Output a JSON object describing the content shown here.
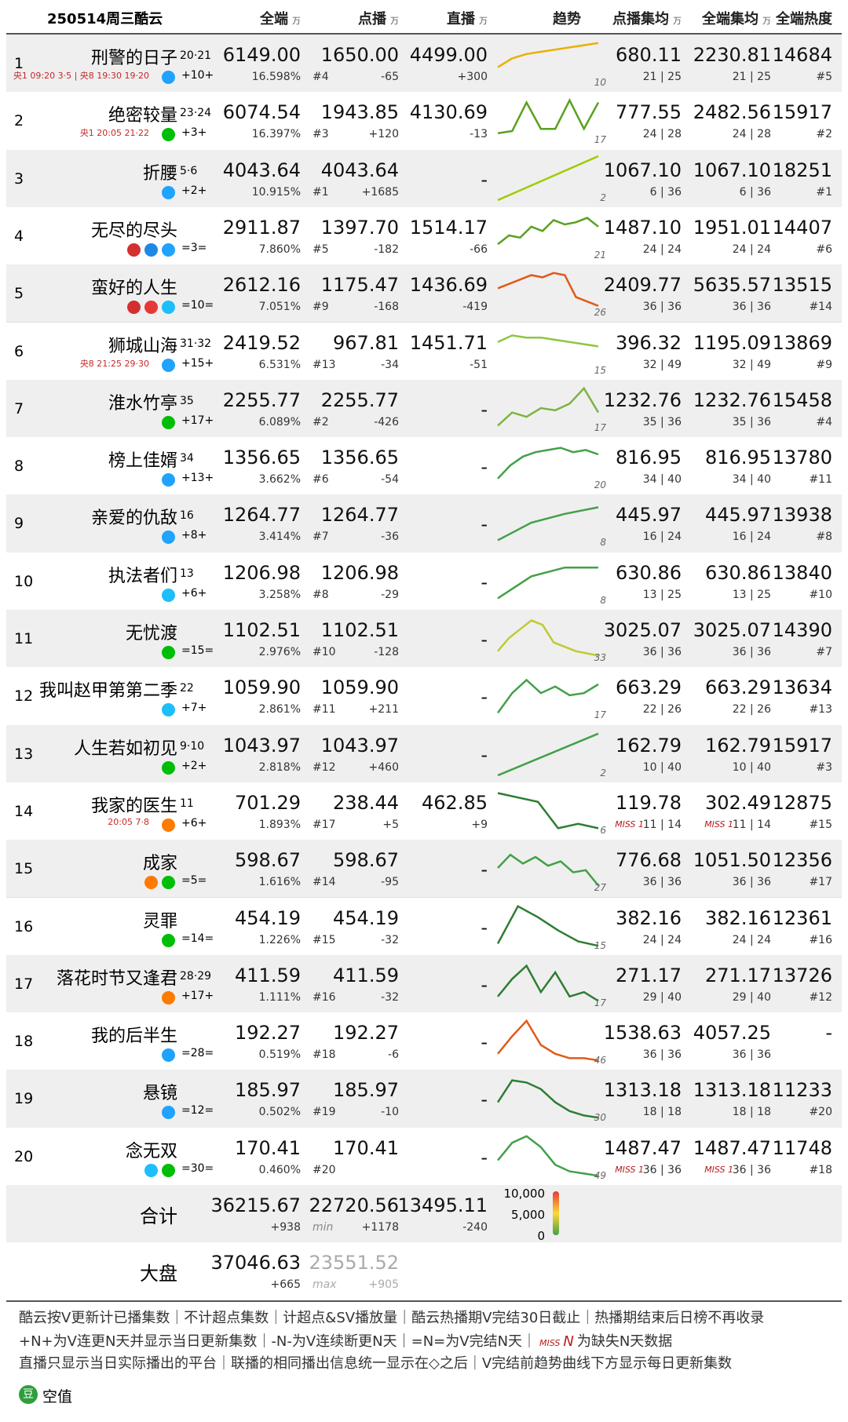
{
  "header": {
    "title": "250514周三酷云",
    "cols": [
      {
        "name": "全端",
        "unit": "万"
      },
      {
        "name": "点播",
        "unit": "万"
      },
      {
        "name": "直播",
        "unit": "万"
      },
      {
        "name": "趋势"
      },
      {
        "name": "点播集均",
        "unit": "万"
      },
      {
        "name": "全端集均",
        "unit": "万"
      },
      {
        "name": "全端热度"
      }
    ]
  },
  "rows": [
    {
      "rank": "1",
      "name": "刑警的日子",
      "eps": "20·21",
      "sched": "央1 09:20 3·5 | 央8 19:30 19·20",
      "chg": "+10+",
      "icons": [
        "#1fa3ff"
      ],
      "total": "6149.00",
      "share": "16.598%",
      "vod": "1650.00",
      "vod_rank": "#4",
      "vod_chg": "-65",
      "live": "4499.00",
      "live_chg": "+300",
      "trend": [
        40,
        60,
        70,
        75,
        80,
        85,
        90,
        95
      ],
      "trend_color": "#e8b000",
      "trend_end": "10",
      "vod_avg": "680.11",
      "vod_eps": "21 | 25",
      "all_avg": "2230.81",
      "all_eps": "21 | 25",
      "heat": "14684",
      "heat_rank": "#5"
    },
    {
      "rank": "2",
      "name": "绝密较量",
      "eps": "23·24",
      "sched": "央1 20:05 21·22",
      "chg": "+3+",
      "icons": [
        "#00be06"
      ],
      "total": "6074.54",
      "share": "16.397%",
      "vod": "1943.85",
      "vod_rank": "#3",
      "vod_chg": "+120",
      "live": "4130.69",
      "live_chg": "-13",
      "trend": [
        20,
        25,
        90,
        30,
        30,
        95,
        30,
        90
      ],
      "trend_color": "#5aa01e",
      "trend_end": "17",
      "vod_avg": "777.55",
      "vod_eps": "24 | 28",
      "all_avg": "2482.56",
      "all_eps": "24 | 28",
      "heat": "15917",
      "heat_rank": "#2"
    },
    {
      "rank": "3",
      "name": "折腰",
      "eps": "5·6",
      "chg": "+2+",
      "icons": [
        "#1fa3ff"
      ],
      "total": "4043.64",
      "share": "10.915%",
      "vod": "4043.64",
      "vod_rank": "#1",
      "vod_chg": "+1685",
      "live": "-",
      "trend": [
        0,
        100
      ],
      "trend_color": "#9ccc00",
      "trend_end": "2",
      "vod_avg": "1067.10",
      "vod_eps": "6 | 36",
      "all_avg": "1067.10",
      "all_eps": "6 | 36",
      "heat": "18251",
      "heat_rank": "#1"
    },
    {
      "rank": "4",
      "name": "无尽的尽头",
      "chg": "=3=",
      "icons": [
        "#d32f2f",
        "#1e88e5",
        "#1fa3ff"
      ],
      "total": "2911.87",
      "share": "7.860%",
      "vod": "1397.70",
      "vod_rank": "#5",
      "vod_chg": "-182",
      "live": "1514.17",
      "live_chg": "-66",
      "trend": [
        30,
        50,
        45,
        70,
        60,
        85,
        75,
        80,
        90,
        70
      ],
      "trend_color": "#5aa01e",
      "trend_end": "21",
      "vod_avg": "1487.10",
      "vod_eps": "24 | 24",
      "all_avg": "1951.01",
      "all_eps": "24 | 24",
      "heat": "14407",
      "heat_rank": "#6"
    },
    {
      "rank": "5",
      "name": "蛮好的人生",
      "chg": "=10=",
      "icons": [
        "#d32f2f",
        "#e53935",
        "#1ebefa"
      ],
      "total": "2612.16",
      "share": "7.051%",
      "vod": "1175.47",
      "vod_rank": "#9",
      "vod_chg": "-168",
      "live": "1436.69",
      "live_chg": "-419",
      "trend": [
        60,
        70,
        80,
        90,
        85,
        95,
        90,
        40,
        30,
        20
      ],
      "trend_color": "#e05a1a",
      "trend_end": "26",
      "vod_avg": "2409.77",
      "vod_eps": "36 | 36",
      "all_avg": "5635.57",
      "all_eps": "36 | 36",
      "heat": "13515",
      "heat_rank": "#14"
    },
    {
      "rank": "6",
      "name": "狮城山海",
      "eps": "31·32",
      "sched": "央8 21:25 29·30",
      "chg": "+15+",
      "icons": [
        "#1fa3ff"
      ],
      "total": "2419.52",
      "share": "6.531%",
      "vod": "967.81",
      "vod_rank": "#13",
      "vod_chg": "-34",
      "live": "1451.71",
      "live_chg": "-51",
      "trend": [
        70,
        85,
        80,
        80,
        75,
        70,
        65,
        60
      ],
      "trend_color": "#8cc63f",
      "trend_end": "15",
      "vod_avg": "396.32",
      "vod_eps": "32 | 49",
      "all_avg": "1195.09",
      "all_eps": "32 | 49",
      "heat": "13869",
      "heat_rank": "#9"
    },
    {
      "rank": "7",
      "name": "淮水竹亭",
      "eps": "35",
      "chg": "+17+",
      "icons": [
        "#00be06"
      ],
      "total": "2255.77",
      "share": "6.089%",
      "vod": "2255.77",
      "vod_rank": "#2",
      "vod_chg": "-426",
      "live": "-",
      "trend": [
        10,
        40,
        30,
        50,
        45,
        60,
        95,
        40
      ],
      "trend_color": "#7cb342",
      "trend_end": "17",
      "vod_avg": "1232.76",
      "vod_eps": "35 | 36",
      "all_avg": "1232.76",
      "all_eps": "35 | 36",
      "heat": "15458",
      "heat_rank": "#4"
    },
    {
      "rank": "8",
      "name": "榜上佳婿",
      "eps": "34",
      "chg": "+13+",
      "icons": [
        "#1fa3ff"
      ],
      "total": "1356.65",
      "share": "3.662%",
      "vod": "1356.65",
      "vod_rank": "#6",
      "vod_chg": "-54",
      "live": "-",
      "trend": [
        20,
        50,
        70,
        80,
        85,
        90,
        80,
        85,
        75
      ],
      "trend_color": "#43a047",
      "trend_end": "20",
      "vod_avg": "816.95",
      "vod_eps": "34 | 40",
      "all_avg": "816.95",
      "all_eps": "34 | 40",
      "heat": "13780",
      "heat_rank": "#11"
    },
    {
      "rank": "9",
      "name": "亲爱的仇敌",
      "eps": "16",
      "chg": "+8+",
      "icons": [
        "#1fa3ff"
      ],
      "total": "1264.77",
      "share": "3.414%",
      "vod": "1264.77",
      "vod_rank": "#7",
      "vod_chg": "-36",
      "live": "-",
      "trend": [
        10,
        50,
        70,
        85
      ],
      "trend_color": "#43a047",
      "trend_end": "8",
      "vod_avg": "445.97",
      "vod_eps": "16 | 24",
      "all_avg": "445.97",
      "all_eps": "16 | 24",
      "heat": "13938",
      "heat_rank": "#8"
    },
    {
      "rank": "10",
      "name": "执法者们",
      "eps": "13",
      "chg": "+6+",
      "icons": [
        "#1ebefa"
      ],
      "total": "1206.98",
      "share": "3.258%",
      "vod": "1206.98",
      "vod_rank": "#8",
      "vod_chg": "-29",
      "live": "-",
      "trend": [
        10,
        60,
        80,
        80
      ],
      "trend_color": "#43a047",
      "trend_end": "8",
      "vod_avg": "630.86",
      "vod_eps": "13 | 25",
      "all_avg": "630.86",
      "all_eps": "13 | 25",
      "heat": "13840",
      "heat_rank": "#10"
    },
    {
      "rank": "11",
      "name": "无忧渡",
      "chg": "=15=",
      "icons": [
        "#00be06"
      ],
      "total": "1102.51",
      "share": "2.976%",
      "vod": "1102.51",
      "vod_rank": "#10",
      "vod_chg": "-128",
      "live": "-",
      "trend": [
        20,
        50,
        70,
        90,
        80,
        40,
        30,
        20,
        15,
        10
      ],
      "trend_color": "#c0ca33",
      "trend_end": "33",
      "vod_avg": "3025.07",
      "vod_eps": "36 | 36",
      "all_avg": "3025.07",
      "all_eps": "36 | 36",
      "heat": "14390",
      "heat_rank": "#7"
    },
    {
      "rank": "12",
      "name": "我叫赵甲第第二季",
      "eps": "22",
      "chg": "+7+",
      "icons": [
        "#1ebefa"
      ],
      "total": "1059.90",
      "share": "2.861%",
      "vod": "1059.90",
      "vod_rank": "#11",
      "vod_chg": "+211",
      "live": "-",
      "trend": [
        10,
        55,
        85,
        55,
        70,
        50,
        55,
        75
      ],
      "trend_color": "#43a047",
      "trend_end": "17",
      "vod_avg": "663.29",
      "vod_eps": "22 | 26",
      "all_avg": "663.29",
      "all_eps": "22 | 26",
      "heat": "13634",
      "heat_rank": "#13"
    },
    {
      "rank": "13",
      "name": "人生若如初见",
      "eps": "9·10",
      "chg": "+2+",
      "icons": [
        "#00be06"
      ],
      "total": "1043.97",
      "share": "2.818%",
      "vod": "1043.97",
      "vod_rank": "#12",
      "vod_chg": "+460",
      "live": "-",
      "trend": [
        0,
        95
      ],
      "trend_color": "#43a047",
      "trend_end": "2",
      "vod_avg": "162.79",
      "vod_eps": "10 | 40",
      "all_avg": "162.79",
      "all_eps": "10 | 40",
      "heat": "15917",
      "heat_rank": "#3"
    },
    {
      "rank": "14",
      "name": "我家的医生",
      "eps": "11",
      "sched": "20:05 7·8",
      "chg": "+6+",
      "icons": [
        "#ff7a00"
      ],
      "total": "701.29",
      "share": "1.893%",
      "vod": "238.44",
      "vod_rank": "#17",
      "vod_chg": "+5",
      "live": "462.85",
      "live_chg": "+9",
      "trend": [
        90,
        80,
        70,
        10,
        20,
        10
      ],
      "trend_color": "#2e7d32",
      "trend_end": "6",
      "vod_avg": "119.78",
      "vod_miss": "MISS 1",
      "vod_eps": "11 | 14",
      "all_avg": "302.49",
      "all_miss": "MISS 1",
      "all_eps": "11 | 14",
      "heat": "12875",
      "heat_rank": "#15"
    },
    {
      "rank": "15",
      "name": "成家",
      "chg": "=5=",
      "icons": [
        "#ff7a00",
        "#00be06"
      ],
      "total": "598.67",
      "share": "1.616%",
      "vod": "598.67",
      "vod_rank": "#14",
      "vod_chg": "-95",
      "live": "-",
      "trend": [
        50,
        80,
        60,
        75,
        55,
        65,
        40,
        45,
        10
      ],
      "trend_color": "#43a047",
      "trend_end": "27",
      "vod_avg": "776.68",
      "vod_eps": "36 | 36",
      "all_avg": "1051.50",
      "all_eps": "36 | 36",
      "heat": "12356",
      "heat_rank": "#17"
    },
    {
      "rank": "16",
      "name": "灵罪",
      "chg": "=14=",
      "icons": [
        "#00be06"
      ],
      "total": "454.19",
      "share": "1.226%",
      "vod": "454.19",
      "vod_rank": "#15",
      "vod_chg": "-32",
      "live": "-",
      "trend": [
        10,
        95,
        70,
        40,
        15,
        5
      ],
      "trend_color": "#2e7d32",
      "trend_end": "15",
      "vod_avg": "382.16",
      "vod_eps": "24 | 24",
      "all_avg": "382.16",
      "all_eps": "24 | 24",
      "heat": "12361",
      "heat_rank": "#16"
    },
    {
      "rank": "17",
      "name": "落花时节又逢君",
      "eps": "28·29",
      "chg": "+17+",
      "icons": [
        "#ff7a00"
      ],
      "total": "411.59",
      "share": "1.111%",
      "vod": "411.59",
      "vod_rank": "#16",
      "vod_chg": "-32",
      "live": "-",
      "trend": [
        20,
        60,
        90,
        30,
        75,
        20,
        30,
        10
      ],
      "trend_color": "#2e7d32",
      "trend_end": "17",
      "vod_avg": "271.17",
      "vod_eps": "29 | 40",
      "all_avg": "271.17",
      "all_eps": "29 | 40",
      "heat": "13726",
      "heat_rank": "#12"
    },
    {
      "rank": "18",
      "name": "我的后半生",
      "chg": "=28=",
      "icons": [
        "#1fa3ff"
      ],
      "total": "192.27",
      "share": "0.519%",
      "vod": "192.27",
      "vod_rank": "#18",
      "vod_chg": "-6",
      "live": "-",
      "trend": [
        20,
        60,
        95,
        40,
        20,
        10,
        10,
        5
      ],
      "trend_color": "#e05a1a",
      "trend_end": "46",
      "vod_avg": "1538.63",
      "vod_eps": "36 | 36",
      "all_avg": "4057.25",
      "all_eps": "36 | 36",
      "heat": "-"
    },
    {
      "rank": "19",
      "name": "悬镜",
      "chg": "=12=",
      "icons": [
        "#1fa3ff"
      ],
      "total": "185.97",
      "share": "0.502%",
      "vod": "185.97",
      "vod_rank": "#19",
      "vod_chg": "-10",
      "live": "-",
      "trend": [
        40,
        90,
        85,
        70,
        40,
        20,
        10,
        5
      ],
      "trend_color": "#2e7d32",
      "trend_end": "30",
      "vod_avg": "1313.18",
      "vod_eps": "18 | 18",
      "all_avg": "1313.18",
      "all_eps": "18 | 18",
      "heat": "11233",
      "heat_rank": "#20"
    },
    {
      "rank": "20",
      "name": "念无双",
      "chg": "=30=",
      "icons": [
        "#1ebefa",
        "#00be06"
      ],
      "total": "170.41",
      "share": "0.460%",
      "vod": "170.41",
      "vod_rank": "#20",
      "live": "-",
      "trend": [
        40,
        80,
        95,
        70,
        30,
        15,
        10,
        5
      ],
      "trend_color": "#43a047",
      "trend_end": "49",
      "vod_avg": "1487.47",
      "vod_miss": "MISS 1",
      "vod_eps": "36 | 36",
      "all_avg": "1487.47",
      "all_miss": "MISS 1",
      "all_eps": "36 | 36",
      "heat": "11748",
      "heat_rank": "#18"
    }
  ],
  "sum": {
    "label": "合计",
    "total": "36215.67",
    "total_chg": "+938",
    "vod": "22720.56",
    "vod_tag": "min",
    "vod_chg": "+1178",
    "live": "13495.11",
    "live_chg": "-240",
    "legend": [
      "10,000",
      "5,000",
      "0"
    ]
  },
  "market": {
    "label": "大盘",
    "total": "37046.63",
    "total_chg": "+665",
    "vod": "23551.52",
    "vod_tag": "max",
    "vod_chg": "+905"
  },
  "notes": {
    "line1": "酷云按V更新计已播集数｜不计超点集数｜计超点&SV播放量｜酷云热播期V完结30日截止｜热播期结束后日榜不再收录",
    "line2a": "+N+为V连更N天并显示当日更新集数｜-N-为V连续断更N天｜=N=为V完结N天｜",
    "miss": "MISS",
    "missN": "N",
    "line2b": "为缺失N天数据",
    "line3": "直播只显示当日实际播出的平台｜联播的相同播出信息统一显示在◇之后｜V完结前趋势曲线下方显示每日更新集数",
    "logo": "豆",
    "brand": "空值"
  }
}
